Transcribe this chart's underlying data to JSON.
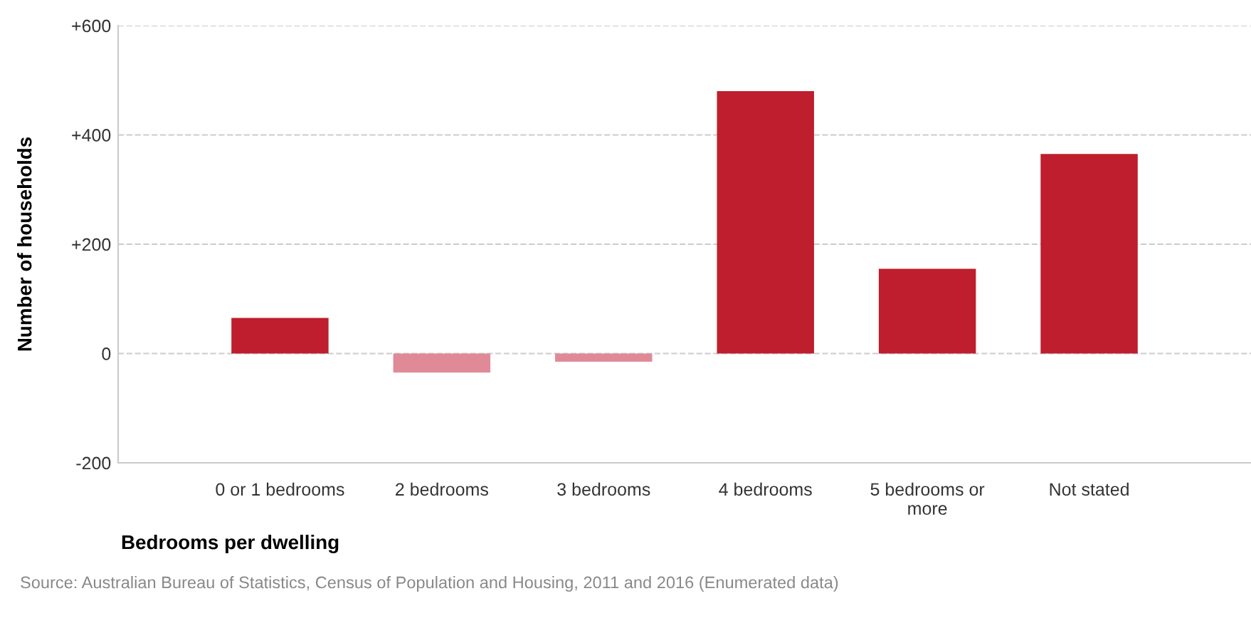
{
  "chart_data": {
    "type": "bar",
    "categories": [
      "0 or 1 bedrooms",
      "2 bedrooms",
      "3 bedrooms",
      "4 bedrooms",
      "5 bedrooms or\nmore",
      "Not stated"
    ],
    "values": [
      65,
      -35,
      -15,
      480,
      155,
      365
    ],
    "colors": [
      "#be1e2d",
      "#e08a98",
      "#e08a98",
      "#be1e2d",
      "#be1e2d",
      "#be1e2d"
    ],
    "xlabel": "Bedrooms per dwelling",
    "ylabel": "Number of households",
    "ylim": [
      -200,
      600
    ],
    "yticks": [
      {
        "value": -200,
        "label": "-200"
      },
      0,
      {
        "value": 200,
        "label": "+200"
      },
      {
        "value": 400,
        "label": "+400"
      },
      {
        "value": 600,
        "label": "+600"
      }
    ],
    "grid": "y",
    "annotations": [
      "Source: Australian Bureau of Statistics, Census of Population and Housing, 2011 and 2016 (Enumerated data)"
    ]
  }
}
